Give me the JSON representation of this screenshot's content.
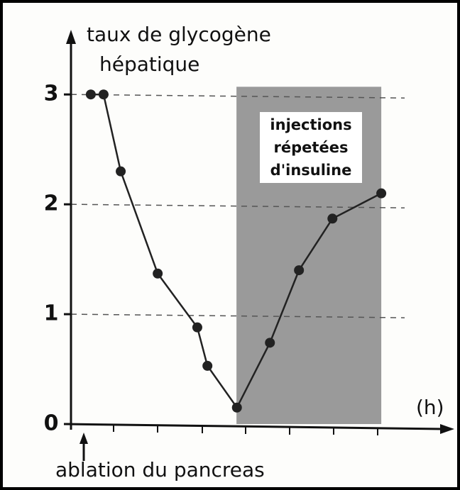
{
  "chart_data": {
    "type": "line",
    "ylabel": [
      "taux de glycogène",
      "hépatique"
    ],
    "xlabel": "(h)",
    "annotations": [
      "injections",
      "répetées",
      "d'insuline",
      "ablation du pancreas"
    ],
    "x": [
      0.45,
      0.74,
      1.13,
      1.97,
      2.87,
      3.1,
      3.77,
      4.52,
      5.18,
      5.94,
      7.05
    ],
    "series": [
      {
        "color": "#222222",
        "values": [
          3.0,
          3.0,
          2.3,
          1.37,
          0.88,
          0.53,
          0.15,
          0.74,
          1.4,
          1.87,
          2.1
        ]
      }
    ],
    "xlim": [
      0,
      8.5
    ],
    "ylim": [
      0,
      3.55
    ],
    "yticks": [
      0,
      1,
      2,
      3
    ],
    "grid": true,
    "shade": {
      "xlim": [
        3.76,
        7.05
      ],
      "ylim": [
        0,
        3.07
      ],
      "color": "#9a9a9a"
    }
  }
}
